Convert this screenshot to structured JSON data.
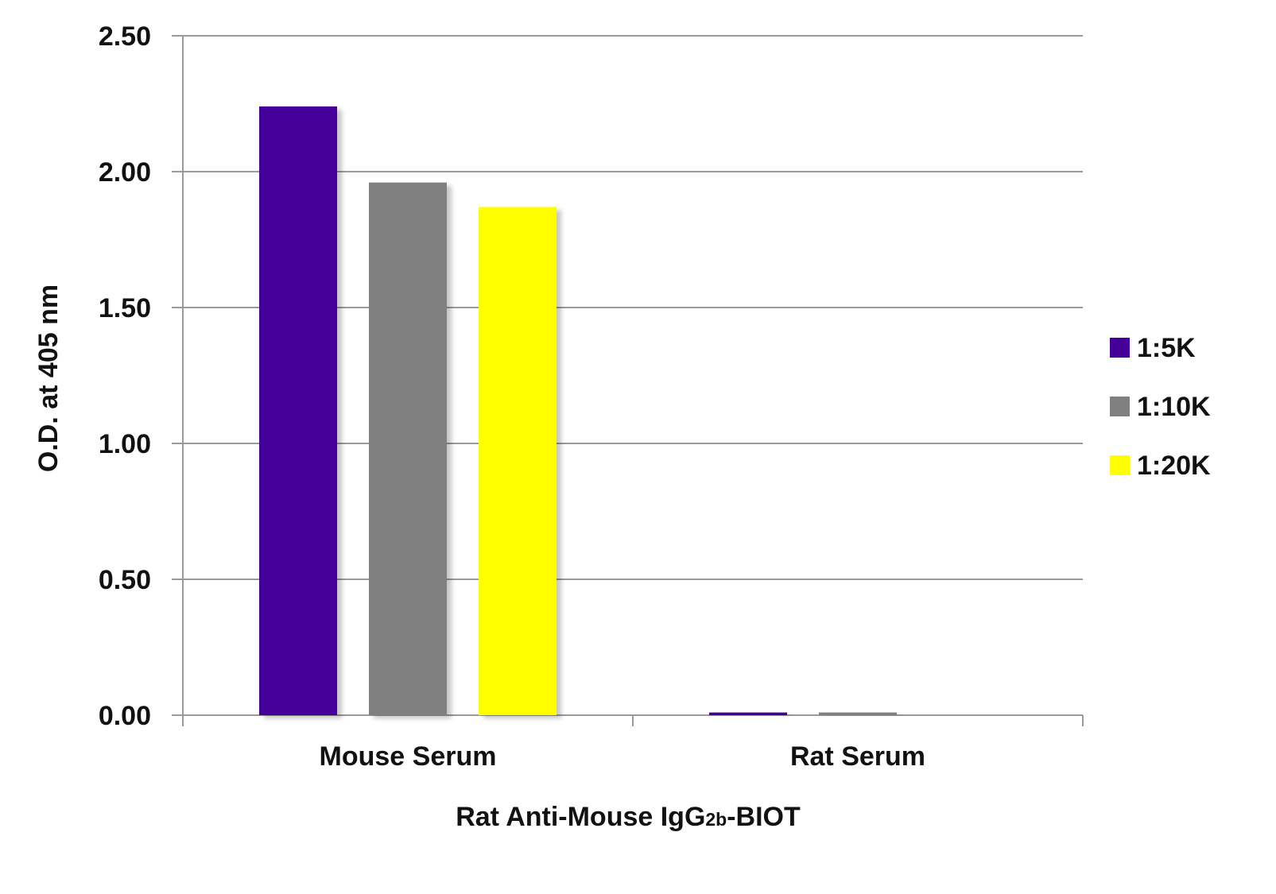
{
  "chart_data": {
    "type": "bar",
    "title": "",
    "xlabel": {
      "main": "Rat Anti-Mouse IgG",
      "subscript": "2b",
      "suffix": "-BIOT"
    },
    "ylabel": "O.D. at 405 nm",
    "ylim": [
      0,
      2.5
    ],
    "yticks": [
      "0.00",
      "0.50",
      "1.00",
      "1.50",
      "2.00",
      "2.50"
    ],
    "categories": [
      "Mouse Serum",
      "Rat Serum"
    ],
    "series": [
      {
        "name": "1:5K",
        "color": "#440099",
        "values": [
          2.24,
          0.01
        ]
      },
      {
        "name": "1:10K",
        "color": "#808080",
        "values": [
          1.96,
          0.01
        ]
      },
      {
        "name": "1:20K",
        "color": "#ffff00",
        "values": [
          1.87,
          0.0
        ]
      }
    ],
    "grid": true,
    "legend": "right"
  }
}
